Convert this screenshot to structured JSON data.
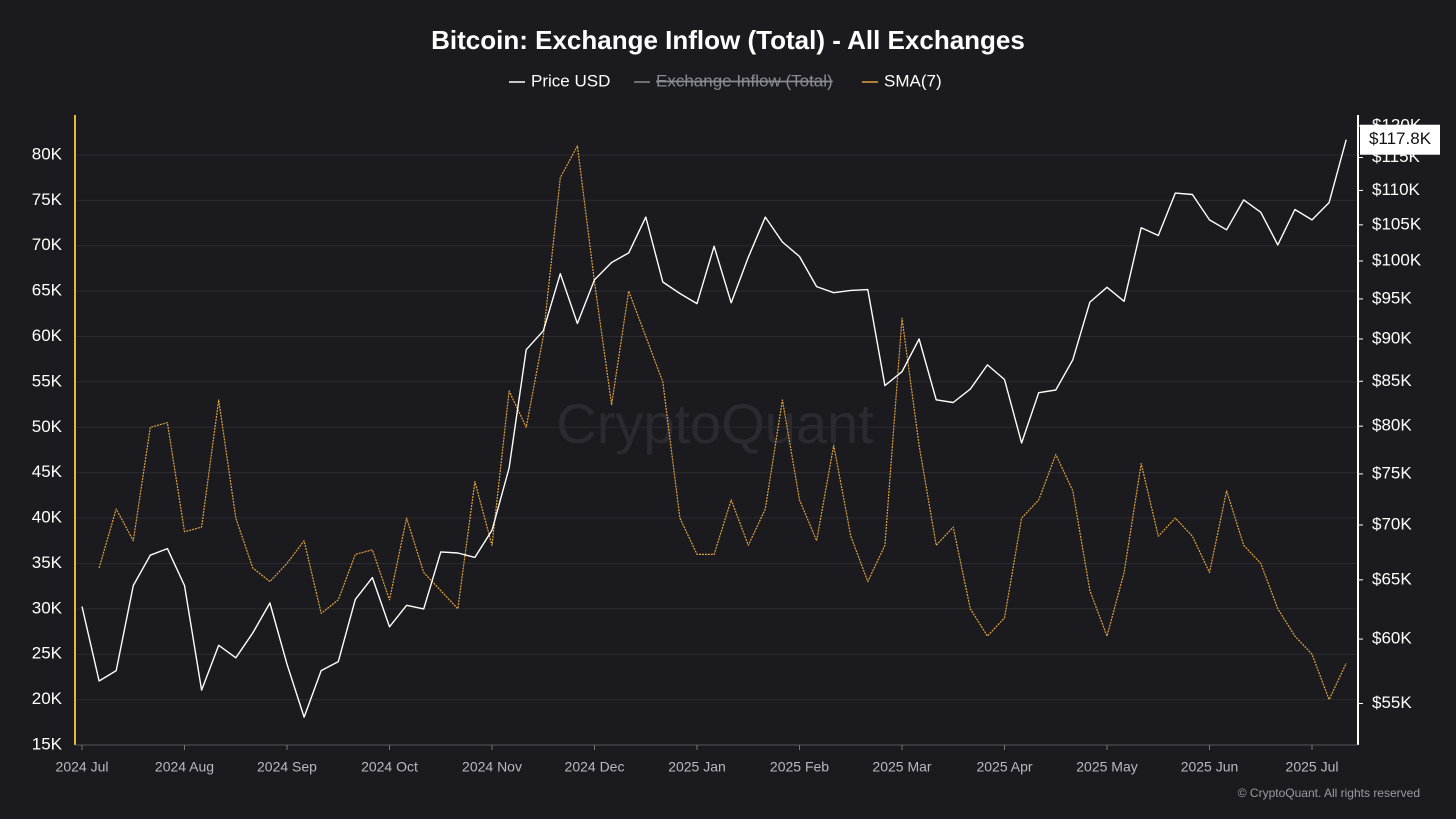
{
  "chart_data": {
    "type": "line",
    "title": "Bitcoin: Exchange Inflow (Total) - All Exchanges",
    "watermark": "CryptoQuant",
    "footer": "© CryptoQuant. All rights reserved",
    "legend_hidden": [
      "Exchange Inflow (Total)"
    ],
    "categories": [
      "2024 Jul",
      null,
      null,
      null,
      null,
      null,
      "2024 Aug",
      null,
      null,
      null,
      null,
      null,
      "2024 Sep",
      null,
      null,
      null,
      null,
      null,
      "2024 Oct",
      null,
      null,
      null,
      null,
      null,
      "2024 Nov",
      null,
      null,
      null,
      null,
      null,
      "2024 Dec",
      null,
      null,
      null,
      null,
      null,
      "2025 Jan",
      null,
      null,
      null,
      null,
      null,
      "2025 Feb",
      null,
      null,
      null,
      null,
      null,
      "2025 Mar",
      null,
      null,
      null,
      null,
      null,
      "2025 Apr",
      null,
      null,
      null,
      null,
      null,
      "2025 May",
      null,
      null,
      null,
      null,
      null,
      "2025 Jun",
      null,
      null,
      null,
      null,
      null,
      "2025 Jul",
      null,
      null
    ],
    "series": [
      {
        "name": "Price USD",
        "color": "#ffffff",
        "axis": "y2",
        "values": [
          62700,
          56700,
          57500,
          64500,
          67200,
          67800,
          64500,
          56000,
          59500,
          58500,
          60500,
          63000,
          58000,
          54000,
          57500,
          58200,
          63300,
          65200,
          61000,
          62800,
          62500,
          67500,
          67400,
          67000,
          69500,
          75600,
          88700,
          91000,
          98300,
          91900,
          97500,
          99800,
          101100,
          106100,
          97200,
          95700,
          94400,
          102000,
          94500,
          100500,
          106100,
          102600,
          100600,
          96600,
          95800,
          96100,
          96200,
          84500,
          86100,
          90000,
          82900,
          82600,
          84100,
          86900,
          85200,
          78200,
          83700,
          84000,
          87500,
          94600,
          96500,
          94700,
          104600,
          103500,
          109600,
          109400,
          105700,
          104300,
          108600,
          106800,
          102200,
          107200,
          105700,
          108200,
          117800
        ]
      },
      {
        "name": "SMA(7)",
        "color": "#e0a23a",
        "axis": "y",
        "values": [
          null,
          34500,
          41000,
          37500,
          50000,
          50500,
          38500,
          39000,
          53000,
          40000,
          34500,
          33000,
          35000,
          37500,
          29500,
          31000,
          36000,
          36500,
          31000,
          40000,
          34000,
          32000,
          30000,
          44000,
          37000,
          54000,
          50000,
          60000,
          77500,
          81000,
          66000,
          52500,
          65000,
          60000,
          55000,
          40000,
          36000,
          36000,
          42000,
          37000,
          41000,
          53000,
          42000,
          37500,
          48000,
          38000,
          33000,
          37000,
          62000,
          48000,
          37000,
          39000,
          30000,
          27000,
          29000,
          40000,
          42000,
          47000,
          43000,
          32000,
          27000,
          34000,
          46000,
          38000,
          40000,
          38000,
          34000,
          43000,
          37000,
          35000,
          30000,
          27000,
          25000,
          20000,
          24000
        ]
      }
    ],
    "ylim": [
      15000,
      84400
    ],
    "yticks": [
      {
        "value": 15000,
        "label": "15K"
      },
      {
        "value": 20000,
        "label": "20K"
      },
      {
        "value": 25000,
        "label": "25K"
      },
      {
        "value": 30000,
        "label": "30K"
      },
      {
        "value": 35000,
        "label": "35K"
      },
      {
        "value": 40000,
        "label": "40K"
      },
      {
        "value": 45000,
        "label": "45K"
      },
      {
        "value": 50000,
        "label": "50K"
      },
      {
        "value": 55000,
        "label": "55K"
      },
      {
        "value": 60000,
        "label": "60K"
      },
      {
        "value": 65000,
        "label": "65K"
      },
      {
        "value": 70000,
        "label": "70K"
      },
      {
        "value": 75000,
        "label": "75K"
      },
      {
        "value": 80000,
        "label": "80K"
      }
    ],
    "y2lim": [
      52000,
      121800
    ],
    "y2log": true,
    "y2ticks": [
      {
        "value": 55000,
        "label": "$55K"
      },
      {
        "value": 60000,
        "label": "$60K"
      },
      {
        "value": 65000,
        "label": "$65K"
      },
      {
        "value": 70000,
        "label": "$70K"
      },
      {
        "value": 75000,
        "label": "$75K"
      },
      {
        "value": 80000,
        "label": "$80K"
      },
      {
        "value": 85000,
        "label": "$85K"
      },
      {
        "value": 90000,
        "label": "$90K"
      },
      {
        "value": 95000,
        "label": "$95K"
      },
      {
        "value": 100000,
        "label": "$100K"
      },
      {
        "value": 105000,
        "label": "$105K"
      },
      {
        "value": 110000,
        "label": "$110K"
      },
      {
        "value": 115000,
        "label": "$115K"
      },
      {
        "value": 120000,
        "label": "$120K"
      }
    ],
    "current_price": {
      "value": 117800,
      "label": "$117.8K"
    },
    "grid": true,
    "left_axis_color": "#e8b830",
    "right_axis_color": "#ffffff"
  }
}
